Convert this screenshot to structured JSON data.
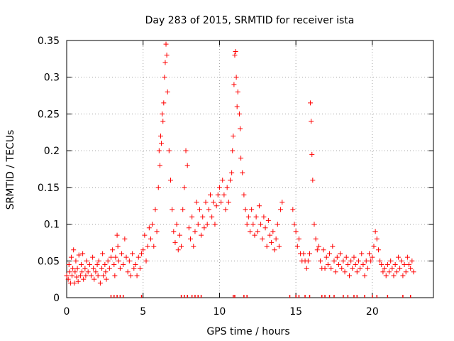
{
  "chart_data": {
    "type": "scatter",
    "title": "Day 283 of 2015, SRMTID for receiver ista",
    "xlabel": "GPS time / hours",
    "ylabel": "SRMTID / TECUs",
    "xlim": [
      0,
      24
    ],
    "ylim": [
      0,
      0.35
    ],
    "xticks": [
      0,
      5,
      10,
      15,
      20
    ],
    "xtick_labels": [
      "0",
      "5",
      "10",
      "15",
      "20"
    ],
    "yticks": [
      0,
      0.05,
      0.1,
      0.15,
      0.2,
      0.25,
      0.3,
      0.35
    ],
    "ytick_labels": [
      "0",
      "0.05",
      "0.1",
      "0.15",
      "0.2",
      "0.25",
      "0.3",
      "0.35"
    ],
    "grid": true,
    "marker": "plus",
    "series": [
      {
        "name": "SRMTID",
        "color": "#ff0000",
        "points": [
          [
            0.0,
            0.03
          ],
          [
            0.1,
            0.025
          ],
          [
            0.15,
            0.045
          ],
          [
            0.2,
            0.035
          ],
          [
            0.25,
            0.02
          ],
          [
            0.3,
            0.055
          ],
          [
            0.35,
            0.03
          ],
          [
            0.4,
            0.04
          ],
          [
            0.45,
            0.065
          ],
          [
            0.5,
            0.02
          ],
          [
            0.55,
            0.035
          ],
          [
            0.6,
            0.05
          ],
          [
            0.65,
            0.028
          ],
          [
            0.7,
            0.04
          ],
          [
            0.75,
            0.022
          ],
          [
            0.8,
            0.058
          ],
          [
            0.9,
            0.03
          ],
          [
            0.95,
            0.045
          ],
          [
            1.0,
            0.035
          ],
          [
            1.05,
            0.06
          ],
          [
            1.1,
            0.025
          ],
          [
            1.2,
            0.04
          ],
          [
            1.25,
            0.03
          ],
          [
            1.3,
            0.05
          ],
          [
            1.4,
            0.035
          ],
          [
            1.5,
            0.045
          ],
          [
            1.6,
            0.03
          ],
          [
            1.7,
            0.055
          ],
          [
            1.75,
            0.04
          ],
          [
            1.8,
            0.025
          ],
          [
            1.9,
            0.035
          ],
          [
            2.0,
            0.045
          ],
          [
            2.05,
            0.03
          ],
          [
            2.1,
            0.05
          ],
          [
            2.2,
            0.02
          ],
          [
            2.3,
            0.04
          ],
          [
            2.35,
            0.06
          ],
          [
            2.4,
            0.03
          ],
          [
            2.5,
            0.045
          ],
          [
            2.55,
            0.035
          ],
          [
            2.6,
            0.025
          ],
          [
            2.7,
            0.05
          ],
          [
            2.8,
            0.04
          ],
          [
            2.9,
            0.055
          ],
          [
            3.0,
            0.065
          ],
          [
            3.1,
            0.045
          ],
          [
            3.15,
            0.03
          ],
          [
            3.2,
            0.055
          ],
          [
            3.3,
            0.085
          ],
          [
            3.35,
            0.07
          ],
          [
            3.4,
            0.05
          ],
          [
            3.5,
            0.04
          ],
          [
            3.6,
            0.06
          ],
          [
            3.7,
            0.045
          ],
          [
            3.8,
            0.08
          ],
          [
            3.9,
            0.055
          ],
          [
            4.0,
            0.035
          ],
          [
            4.1,
            0.05
          ],
          [
            4.2,
            0.03
          ],
          [
            4.3,
            0.06
          ],
          [
            4.4,
            0.04
          ],
          [
            4.5,
            0.045
          ],
          [
            4.6,
            0.03
          ],
          [
            4.7,
            0.055
          ],
          [
            4.8,
            0.04
          ],
          [
            4.9,
            0.06
          ],
          [
            5.0,
            0.065
          ],
          [
            5.1,
            0.085
          ],
          [
            5.2,
            0.05
          ],
          [
            5.3,
            0.07
          ],
          [
            5.4,
            0.095
          ],
          [
            5.5,
            0.08
          ],
          [
            5.6,
            0.1
          ],
          [
            5.7,
            0.07
          ],
          [
            5.8,
            0.12
          ],
          [
            5.9,
            0.09
          ],
          [
            6.0,
            0.15
          ],
          [
            6.05,
            0.2
          ],
          [
            6.1,
            0.18
          ],
          [
            6.15,
            0.22
          ],
          [
            6.2,
            0.21
          ],
          [
            6.25,
            0.25
          ],
          [
            6.3,
            0.24
          ],
          [
            6.35,
            0.265
          ],
          [
            6.4,
            0.3
          ],
          [
            6.45,
            0.32
          ],
          [
            6.5,
            0.345
          ],
          [
            6.55,
            0.33
          ],
          [
            6.6,
            0.28
          ],
          [
            6.7,
            0.2
          ],
          [
            6.8,
            0.16
          ],
          [
            6.9,
            0.12
          ],
          [
            7.0,
            0.09
          ],
          [
            7.1,
            0.075
          ],
          [
            7.2,
            0.1
          ],
          [
            7.3,
            0.065
          ],
          [
            7.4,
            0.085
          ],
          [
            7.5,
            0.07
          ],
          [
            7.6,
            0.12
          ],
          [
            7.7,
            0.15
          ],
          [
            7.8,
            0.2
          ],
          [
            7.9,
            0.18
          ],
          [
            8.0,
            0.095
          ],
          [
            8.1,
            0.08
          ],
          [
            8.2,
            0.11
          ],
          [
            8.3,
            0.07
          ],
          [
            8.4,
            0.09
          ],
          [
            8.5,
            0.13
          ],
          [
            8.6,
            0.1
          ],
          [
            8.7,
            0.12
          ],
          [
            8.8,
            0.085
          ],
          [
            8.9,
            0.11
          ],
          [
            9.0,
            0.095
          ],
          [
            9.1,
            0.13
          ],
          [
            9.2,
            0.1
          ],
          [
            9.3,
            0.12
          ],
          [
            9.4,
            0.14
          ],
          [
            9.5,
            0.11
          ],
          [
            9.6,
            0.13
          ],
          [
            9.7,
            0.1
          ],
          [
            9.8,
            0.125
          ],
          [
            9.9,
            0.14
          ],
          [
            10.0,
            0.15
          ],
          [
            10.1,
            0.13
          ],
          [
            10.2,
            0.16
          ],
          [
            10.3,
            0.14
          ],
          [
            10.4,
            0.12
          ],
          [
            10.5,
            0.15
          ],
          [
            10.6,
            0.13
          ],
          [
            10.7,
            0.16
          ],
          [
            10.8,
            0.17
          ],
          [
            10.85,
            0.2
          ],
          [
            10.9,
            0.22
          ],
          [
            10.95,
            0.29
          ],
          [
            11.0,
            0.33
          ],
          [
            11.05,
            0.335
          ],
          [
            11.1,
            0.3
          ],
          [
            11.15,
            0.26
          ],
          [
            11.2,
            0.28
          ],
          [
            11.3,
            0.25
          ],
          [
            11.35,
            0.23
          ],
          [
            11.4,
            0.19
          ],
          [
            11.5,
            0.17
          ],
          [
            11.6,
            0.14
          ],
          [
            11.7,
            0.12
          ],
          [
            11.8,
            0.1
          ],
          [
            11.9,
            0.11
          ],
          [
            12.0,
            0.09
          ],
          [
            12.1,
            0.12
          ],
          [
            12.2,
            0.1
          ],
          [
            12.3,
            0.085
          ],
          [
            12.4,
            0.11
          ],
          [
            12.5,
            0.09
          ],
          [
            12.6,
            0.125
          ],
          [
            12.7,
            0.1
          ],
          [
            12.8,
            0.08
          ],
          [
            12.9,
            0.11
          ],
          [
            13.0,
            0.095
          ],
          [
            13.1,
            0.07
          ],
          [
            13.2,
            0.105
          ],
          [
            13.3,
            0.085
          ],
          [
            13.4,
            0.075
          ],
          [
            13.5,
            0.09
          ],
          [
            13.6,
            0.065
          ],
          [
            13.7,
            0.08
          ],
          [
            13.8,
            0.1
          ],
          [
            13.9,
            0.07
          ],
          [
            14.0,
            0.12
          ],
          [
            14.1,
            0.13
          ],
          [
            14.8,
            0.12
          ],
          [
            14.9,
            0.1
          ],
          [
            15.0,
            0.09
          ],
          [
            15.1,
            0.07
          ],
          [
            15.2,
            0.08
          ],
          [
            15.3,
            0.06
          ],
          [
            15.4,
            0.05
          ],
          [
            15.5,
            0.06
          ],
          [
            15.6,
            0.05
          ],
          [
            15.7,
            0.04
          ],
          [
            15.8,
            0.05
          ],
          [
            15.9,
            0.06
          ],
          [
            15.95,
            0.265
          ],
          [
            16.0,
            0.24
          ],
          [
            16.05,
            0.195
          ],
          [
            16.1,
            0.16
          ],
          [
            16.2,
            0.1
          ],
          [
            16.3,
            0.08
          ],
          [
            16.4,
            0.065
          ],
          [
            16.5,
            0.07
          ],
          [
            16.6,
            0.05
          ],
          [
            16.7,
            0.04
          ],
          [
            16.8,
            0.065
          ],
          [
            16.9,
            0.04
          ],
          [
            17.0,
            0.055
          ],
          [
            17.1,
            0.045
          ],
          [
            17.2,
            0.06
          ],
          [
            17.3,
            0.04
          ],
          [
            17.4,
            0.07
          ],
          [
            17.5,
            0.05
          ],
          [
            17.6,
            0.035
          ],
          [
            17.7,
            0.055
          ],
          [
            17.8,
            0.045
          ],
          [
            17.9,
            0.06
          ],
          [
            18.0,
            0.04
          ],
          [
            18.1,
            0.05
          ],
          [
            18.2,
            0.035
          ],
          [
            18.3,
            0.055
          ],
          [
            18.4,
            0.045
          ],
          [
            18.5,
            0.03
          ],
          [
            18.6,
            0.05
          ],
          [
            18.7,
            0.04
          ],
          [
            18.8,
            0.055
          ],
          [
            18.9,
            0.045
          ],
          [
            19.0,
            0.035
          ],
          [
            19.1,
            0.05
          ],
          [
            19.2,
            0.04
          ],
          [
            19.3,
            0.06
          ],
          [
            19.4,
            0.045
          ],
          [
            19.5,
            0.03
          ],
          [
            19.6,
            0.05
          ],
          [
            19.7,
            0.04
          ],
          [
            19.8,
            0.06
          ],
          [
            19.9,
            0.05
          ],
          [
            20.0,
            0.055
          ],
          [
            20.1,
            0.07
          ],
          [
            20.2,
            0.09
          ],
          [
            20.3,
            0.08
          ],
          [
            20.4,
            0.065
          ],
          [
            20.5,
            0.05
          ],
          [
            20.6,
            0.045
          ],
          [
            20.7,
            0.035
          ],
          [
            20.8,
            0.04
          ],
          [
            20.9,
            0.03
          ],
          [
            21.0,
            0.045
          ],
          [
            21.1,
            0.035
          ],
          [
            21.2,
            0.05
          ],
          [
            21.3,
            0.04
          ],
          [
            21.4,
            0.03
          ],
          [
            21.5,
            0.045
          ],
          [
            21.6,
            0.035
          ],
          [
            21.7,
            0.055
          ],
          [
            21.8,
            0.04
          ],
          [
            21.9,
            0.05
          ],
          [
            22.0,
            0.03
          ],
          [
            22.1,
            0.045
          ],
          [
            22.2,
            0.035
          ],
          [
            22.3,
            0.055
          ],
          [
            22.4,
            0.045
          ],
          [
            22.5,
            0.04
          ],
          [
            22.6,
            0.05
          ],
          [
            22.7,
            0.035
          ]
        ]
      }
    ],
    "axis_markers": [
      2.9,
      3.1,
      3.3,
      3.5,
      3.7,
      4.9,
      7.5,
      7.7,
      7.9,
      8.2,
      8.4,
      8.6,
      8.8,
      10.9,
      11.0,
      11.6,
      11.8,
      14.6,
      15.0,
      15.2,
      15.6,
      15.9,
      16.7,
      16.9,
      17.2,
      17.5,
      18.1,
      18.4,
      18.8,
      19.0,
      19.5,
      20.0,
      20.3,
      21.0,
      22.0,
      22.5
    ]
  }
}
